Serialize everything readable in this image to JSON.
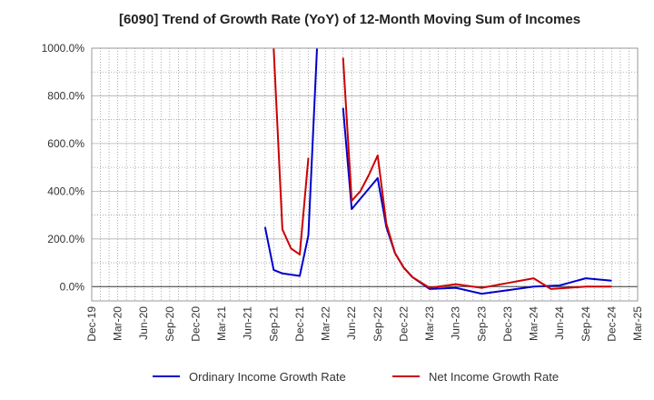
{
  "chart_data": {
    "type": "line",
    "title": "[6090]  Trend of Growth Rate (YoY) of 12-Month Moving Sum of Incomes",
    "xlabel": "",
    "ylabel": "",
    "ylim": [
      -60,
      1000
    ],
    "yticks": [
      0,
      200,
      400,
      600,
      800,
      1000
    ],
    "ytick_labels": [
      "0.0%",
      "200.0%",
      "400.0%",
      "600.0%",
      "800.0%",
      "1000.0%"
    ],
    "x_range": [
      "2019-12",
      "2025-03"
    ],
    "x_ticks": [
      "2019-12",
      "2020-03",
      "2020-06",
      "2020-09",
      "2020-12",
      "2021-03",
      "2021-06",
      "2021-09",
      "2021-12",
      "2022-03",
      "2022-06",
      "2022-09",
      "2022-12",
      "2023-03",
      "2023-06",
      "2023-09",
      "2023-12",
      "2024-03",
      "2024-06",
      "2024-09",
      "2024-12",
      "2025-03"
    ],
    "x_tick_labels": [
      "Dec-19",
      "Mar-20",
      "Jun-20",
      "Sep-20",
      "Dec-20",
      "Mar-21",
      "Jun-21",
      "Sep-21",
      "Dec-21",
      "Mar-22",
      "Jun-22",
      "Sep-22",
      "Dec-22",
      "Mar-23",
      "Jun-23",
      "Sep-23",
      "Dec-23",
      "Mar-24",
      "Jun-24",
      "Sep-24",
      "Dec-24",
      "Mar-25"
    ],
    "grid": true,
    "legend_position": "bottom",
    "series": [
      {
        "name": "Ordinary Income Growth Rate",
        "color": "#0000cc",
        "points": [
          {
            "x": "2021-08",
            "y": 250
          },
          {
            "x": "2021-09",
            "y": 70
          },
          {
            "x": "2021-10",
            "y": 55
          },
          {
            "x": "2021-12",
            "y": 45
          },
          {
            "x": "2022-01",
            "y": 215
          },
          {
            "x": "2022-02",
            "y": 1000
          },
          {
            "x": null,
            "y": null
          },
          {
            "x": "2022-05",
            "y": 750
          },
          {
            "x": "2022-06",
            "y": 325
          },
          {
            "x": "2022-09",
            "y": 455
          },
          {
            "x": "2022-10",
            "y": 250
          },
          {
            "x": "2022-11",
            "y": 140
          },
          {
            "x": "2022-12",
            "y": 80
          },
          {
            "x": "2023-01",
            "y": 40
          },
          {
            "x": "2023-03",
            "y": -10
          },
          {
            "x": "2023-06",
            "y": -5
          },
          {
            "x": "2023-09",
            "y": -30
          },
          {
            "x": "2023-12",
            "y": -15
          },
          {
            "x": "2024-03",
            "y": 0
          },
          {
            "x": "2024-06",
            "y": 5
          },
          {
            "x": "2024-09",
            "y": 35
          },
          {
            "x": "2024-12",
            "y": 25
          }
        ]
      },
      {
        "name": "Net Income Growth Rate",
        "color": "#cc0000",
        "points": [
          {
            "x": "2021-09",
            "y": 1000
          },
          {
            "x": "2021-10",
            "y": 240
          },
          {
            "x": "2021-11",
            "y": 160
          },
          {
            "x": "2021-12",
            "y": 135
          },
          {
            "x": "2022-01",
            "y": 540
          },
          {
            "x": null,
            "y": null
          },
          {
            "x": "2022-05",
            "y": 960
          },
          {
            "x": "2022-06",
            "y": 360
          },
          {
            "x": "2022-07",
            "y": 400
          },
          {
            "x": "2022-08",
            "y": 470
          },
          {
            "x": "2022-09",
            "y": 550
          },
          {
            "x": "2022-10",
            "y": 265
          },
          {
            "x": "2022-11",
            "y": 140
          },
          {
            "x": "2022-12",
            "y": 80
          },
          {
            "x": "2023-01",
            "y": 40
          },
          {
            "x": "2023-03",
            "y": -5
          },
          {
            "x": "2023-06",
            "y": 10
          },
          {
            "x": "2023-09",
            "y": -5
          },
          {
            "x": "2023-12",
            "y": 15
          },
          {
            "x": "2024-03",
            "y": 35
          },
          {
            "x": "2024-05",
            "y": -10
          },
          {
            "x": "2024-09",
            "y": 0
          },
          {
            "x": "2024-12",
            "y": 0
          }
        ]
      }
    ]
  }
}
